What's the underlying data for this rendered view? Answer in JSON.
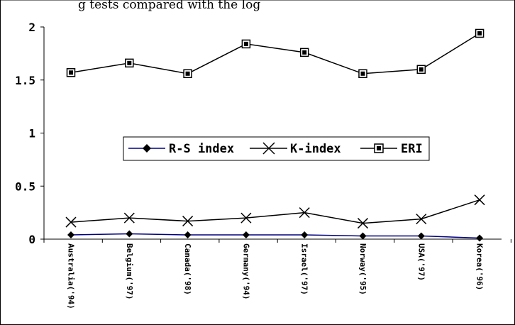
{
  "chart_data": {
    "type": "line",
    "title": "g tests compared with the log",
    "categories": [
      "Australia('94)",
      "Belgium('97)",
      "Canada('98)",
      "Germany('94)",
      "Israel('97)",
      "Norway('95)",
      "USA('97)",
      "Korea('96)"
    ],
    "series": [
      {
        "name": "R-S index",
        "marker": "diamond",
        "color": "#000080",
        "values": [
          0.04,
          0.05,
          0.04,
          0.04,
          0.04,
          0.03,
          0.03,
          0.01
        ]
      },
      {
        "name": "K-index",
        "marker": "x",
        "color": "#000000",
        "values": [
          0.16,
          0.2,
          0.17,
          0.2,
          0.25,
          0.15,
          0.19,
          0.37
        ]
      },
      {
        "name": "ERI",
        "marker": "square",
        "color": "#000000",
        "values": [
          1.57,
          1.66,
          1.56,
          1.84,
          1.76,
          1.56,
          1.6,
          1.94
        ]
      }
    ],
    "ylim": [
      0,
      2
    ],
    "yticks": [
      "0",
      "0.5",
      "1",
      "1.5",
      "2"
    ],
    "legend": "center",
    "grid": false
  }
}
